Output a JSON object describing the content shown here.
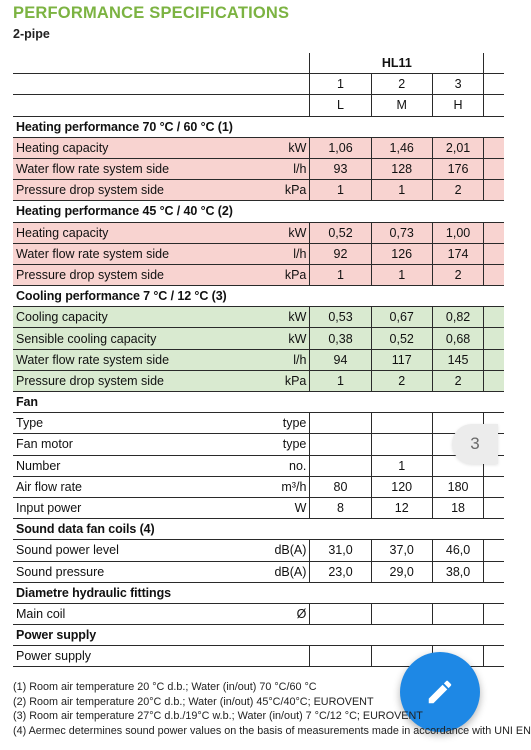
{
  "title": "PERFORMANCE SPECIFICATIONS",
  "subtitle": "2-pipe",
  "model": "HL11",
  "speeds": [
    "1",
    "2",
    "3"
  ],
  "speed_letters": [
    "L",
    "M",
    "H"
  ],
  "sections": [
    {
      "title": "Heating performance 70 °C / 60 °C (1)",
      "tint": "red",
      "rows": [
        {
          "label": "Heating capacity",
          "unit": "kW",
          "values": [
            "1,06",
            "1,46",
            "2,01"
          ]
        },
        {
          "label": "Water flow rate system side",
          "unit": "l/h",
          "values": [
            "93",
            "128",
            "176"
          ]
        },
        {
          "label": "Pressure drop system side",
          "unit": "kPa",
          "values": [
            "1",
            "1",
            "2"
          ]
        }
      ]
    },
    {
      "title": "Heating performance 45 °C / 40 °C (2)",
      "tint": "red",
      "rows": [
        {
          "label": "Heating capacity",
          "unit": "kW",
          "values": [
            "0,52",
            "0,73",
            "1,00"
          ]
        },
        {
          "label": "Water flow rate system side",
          "unit": "l/h",
          "values": [
            "92",
            "126",
            "174"
          ]
        },
        {
          "label": "Pressure drop system side",
          "unit": "kPa",
          "values": [
            "1",
            "1",
            "2"
          ]
        }
      ]
    },
    {
      "title": "Cooling performance 7 °C / 12 °C (3)",
      "tint": "green",
      "rows": [
        {
          "label": "Cooling capacity",
          "unit": "kW",
          "values": [
            "0,53",
            "0,67",
            "0,82"
          ]
        },
        {
          "label": "Sensible cooling capacity",
          "unit": "kW",
          "values": [
            "0,38",
            "0,52",
            "0,68"
          ]
        },
        {
          "label": "Water flow rate system side",
          "unit": "l/h",
          "values": [
            "94",
            "117",
            "145"
          ]
        },
        {
          "label": "Pressure drop system side",
          "unit": "kPa",
          "values": [
            "1",
            "2",
            "2"
          ]
        }
      ]
    },
    {
      "title": "Fan",
      "tint": "none",
      "rows": [
        {
          "label": "Type",
          "unit": "type",
          "values": [
            "",
            "",
            ""
          ]
        },
        {
          "label": "Fan motor",
          "unit": "type",
          "values": [
            "",
            "",
            ""
          ]
        },
        {
          "label": "Number",
          "unit": "no.",
          "values": [
            "",
            "1",
            ""
          ]
        },
        {
          "label": "Air flow rate",
          "unit": "m³/h",
          "values": [
            "80",
            "120",
            "180"
          ]
        },
        {
          "label": "Input power",
          "unit": "W",
          "values": [
            "8",
            "12",
            "18"
          ]
        }
      ]
    },
    {
      "title": "Sound data fan coils (4)",
      "tint": "none",
      "rows": [
        {
          "label": "Sound power level",
          "unit": "dB(A)",
          "values": [
            "31,0",
            "37,0",
            "46,0"
          ]
        },
        {
          "label": "Sound pressure",
          "unit": "dB(A)",
          "values": [
            "23,0",
            "29,0",
            "38,0"
          ]
        }
      ]
    },
    {
      "title": "Diametre hydraulic fittings",
      "tint": "none",
      "rows": [
        {
          "label": "Main coil",
          "unit": "Ø",
          "values": [
            "",
            "",
            ""
          ]
        }
      ]
    },
    {
      "title": "Power supply",
      "tint": "none",
      "rows": [
        {
          "label": "Power supply",
          "unit": "",
          "values": [
            "",
            "",
            ""
          ]
        }
      ]
    }
  ],
  "notes": [
    "(1)  Room air temperature 20 °C d.b.; Water (in/out) 70 °C/60 °C",
    "(2)  Room air temperature 20°C d.b.; Water (in/out) 45°C/40°C; EUROVENT",
    "(3)  Room air temperature 27°C d.b./19°C w.b.; Water (in/out) 7 °C/12 °C; EUROVENT",
    "(4)  Aermec determines sound power values on the basis of measurements made in accordance with UNI EN"
  ],
  "page_indicator": "3",
  "icons": {
    "fab": "pencil-icon"
  },
  "colors": {
    "title": "#7cb342",
    "heating_rows": "#f8d3d0",
    "cooling_rows": "#d9ead0",
    "fab": "#1e88e5"
  }
}
